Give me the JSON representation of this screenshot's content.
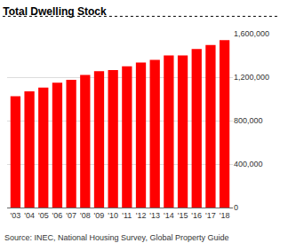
{
  "chart_data": {
    "type": "bar",
    "title": "Total Dwelling Stock",
    "annotations": [
      "Source: INEC, National Housing Survey, Global Property Guide"
    ],
    "categories": [
      "'03",
      "'04",
      "'05",
      "'06",
      "'07",
      "'08",
      "'09",
      "'10",
      "'11",
      "'12",
      "'13",
      "'14",
      "'15",
      "'16",
      "'17",
      "'18"
    ],
    "values": [
      1025000,
      1070000,
      1105000,
      1150000,
      1175000,
      1220000,
      1255000,
      1265000,
      1300000,
      1335000,
      1360000,
      1400000,
      1400000,
      1460000,
      1495000,
      1540000
    ],
    "color": "#ff0000",
    "ylim": [
      0,
      1600000
    ],
    "yticks": [
      0,
      {
        "value": 400000,
        "label": "400,000"
      },
      {
        "value": 800000,
        "label": "800,000"
      },
      {
        "value": 1200000,
        "label": "1,200,000"
      },
      {
        "value": 1600000,
        "label": "1,600,000"
      }
    ],
    "grid": true
  }
}
